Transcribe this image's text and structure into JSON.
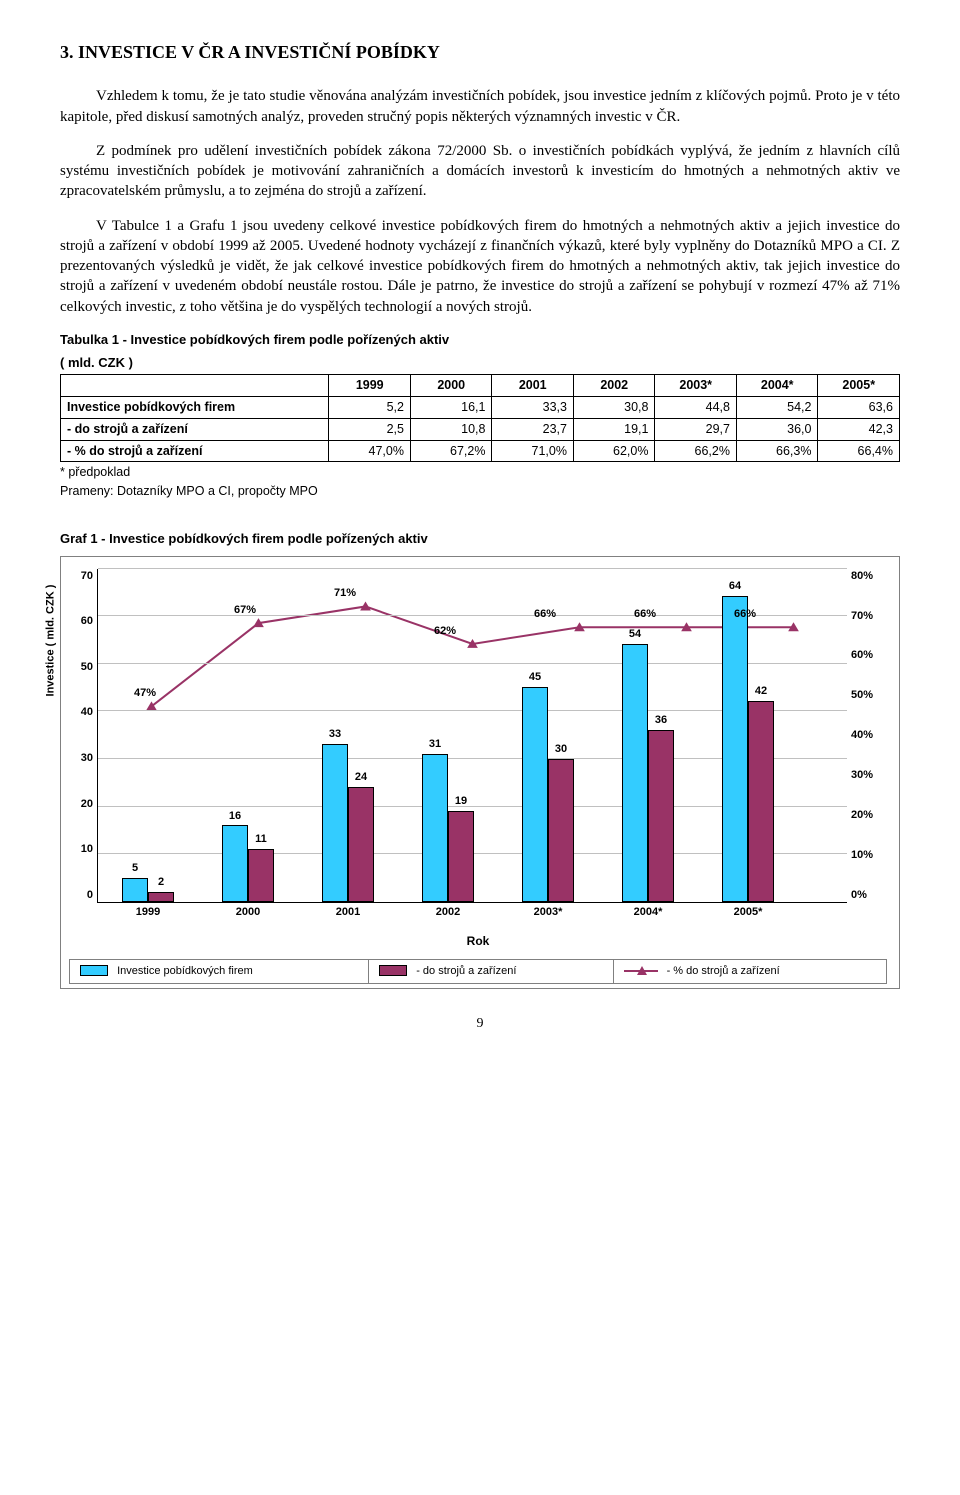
{
  "heading": "3. INVESTICE V ČR A INVESTIČNÍ POBÍDKY",
  "paragraphs": [
    "Vzhledem k tomu, že je tato studie věnována analýzám investičních pobídek, jsou investice jedním z klíčových pojmů. Proto je v této kapitole, před diskusí samotných analýz, proveden stručný popis některých významných investic v ČR.",
    "Z podmínek pro udělení investičních pobídek zákona 72/2000 Sb. o investičních pobídkách vyplývá, že jedním z hlavních cílů systému investičních pobídek je motivování zahraničních a domácích investorů k investicím do hmotných a nehmotných aktiv ve zpracovatelském průmyslu, a to zejména do strojů a zařízení.",
    "V Tabulce 1 a Grafu 1 jsou uvedeny celkové investice pobídkových firem do hmotných a nehmotných aktiv a jejich investice do strojů a zařízení v období 1999 až 2005. Uvedené hodnoty vycházejí z finančních výkazů, které byly vyplněny do Dotazníků MPO a CI. Z prezentovaných výsledků je vidět, že jak celkové investice pobídkových firem do hmotných a nehmotných aktiv, tak jejich investice do strojů a zařízení v uvedeném období neustále rostou. Dále je patrno, že investice do strojů a zařízení se pohybují v rozmezí 47% až 71% celkových investic, z toho většina je do vyspělých technologií a nových strojů."
  ],
  "table": {
    "title": "Tabulka 1 - Investice pobídkových firem podle pořízených aktiv",
    "subtitle": "( mld. CZK )",
    "columns": [
      "",
      "1999",
      "2000",
      "2001",
      "2002",
      "2003*",
      "2004*",
      "2005*"
    ],
    "rows": [
      [
        "Investice pobídkových firem",
        "5,2",
        "16,1",
        "33,3",
        "30,8",
        "44,8",
        "54,2",
        "63,6"
      ],
      [
        " - do strojů a zařízení",
        "2,5",
        "10,8",
        "23,7",
        "19,1",
        "29,7",
        "36,0",
        "42,3"
      ],
      [
        " - % do strojů a zařízení",
        "47,0%",
        "67,2%",
        "71,0%",
        "62,0%",
        "66,2%",
        "66,3%",
        "66,4%"
      ]
    ],
    "footnotes": [
      "* předpoklad",
      "Prameny: Dotazníky MPO a CI, propočty MPO"
    ]
  },
  "chart": {
    "title": "Graf 1 - Investice pobídkových firem podle pořízených aktiv",
    "y_left_label": "Investice ( mld. CZK )",
    "x_label": "Rok",
    "y_left_ticks": [
      "70",
      "60",
      "50",
      "40",
      "30",
      "20",
      "10",
      "0"
    ],
    "y_right_ticks": [
      "80%",
      "70%",
      "60%",
      "50%",
      "40%",
      "30%",
      "20%",
      "10%",
      "0%"
    ],
    "y_left_max": 70,
    "y_right_max": 80,
    "categories": [
      "1999",
      "2000",
      "2001",
      "2002",
      "2003*",
      "2004*",
      "2005*"
    ],
    "series_total": {
      "label": "Investice pobídkových firem",
      "color": "#33ccff",
      "values": [
        5,
        16,
        33,
        31,
        45,
        54,
        64
      ],
      "labels": [
        "5",
        "16",
        "33",
        "31",
        "45",
        "54",
        "64"
      ]
    },
    "series_stroj": {
      "label": " - do strojů a zařízení",
      "color": "#993366",
      "values": [
        2,
        11,
        24,
        19,
        30,
        36,
        42
      ],
      "labels": [
        "2",
        "11",
        "24",
        "19",
        "30",
        "36",
        "42"
      ]
    },
    "series_pct": {
      "label": " - % do strojů a zařízení",
      "color": "#993366",
      "values": [
        47,
        67,
        71,
        62,
        66,
        66,
        66
      ],
      "labels": [
        "47%",
        "67%",
        "71%",
        "62%",
        "66%",
        "66%",
        "66%"
      ]
    }
  },
  "page_number": "9"
}
